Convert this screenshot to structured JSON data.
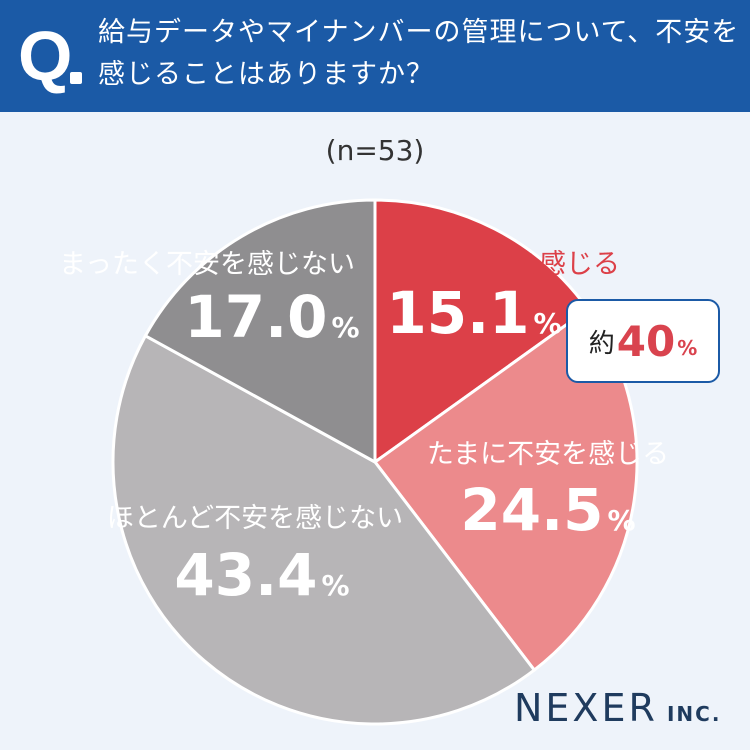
{
  "header": {
    "q_mark": "Q",
    "question_lines": [
      "給与データやマイナンバーの管理について、不安を",
      "感じることはありますか？"
    ]
  },
  "sample_size": "(n=53)",
  "chart_data": {
    "type": "pie",
    "start_angle_deg": 0,
    "direction": "clockwise",
    "unit": "%",
    "slices": [
      {
        "label": "よく不安を感じる",
        "value": 15.1,
        "value_text": "15.1",
        "color": "#dc4048",
        "label_color": "#dc4048",
        "value_color": "#ffffff"
      },
      {
        "label": "たまに不安を感じる",
        "value": 24.5,
        "value_text": "24.5",
        "color": "#ec8a8c",
        "label_color": "#ffffff",
        "value_color": "#ffffff"
      },
      {
        "label": "ほとんど不安を感じない",
        "value": 43.4,
        "value_text": "43.4",
        "color": "#b7b5b7",
        "label_color": "#ffffff",
        "value_color": "#ffffff"
      },
      {
        "label": "まったく不安を感じない",
        "value": 17.0,
        "value_text": "17.0",
        "color": "#8f8e90",
        "label_color": "#ffffff",
        "value_color": "#ffffff"
      }
    ]
  },
  "callout": {
    "prefix": "約",
    "value": "40",
    "unit": "%"
  },
  "logo": {
    "main": "NEXER",
    "sub": "INC."
  }
}
